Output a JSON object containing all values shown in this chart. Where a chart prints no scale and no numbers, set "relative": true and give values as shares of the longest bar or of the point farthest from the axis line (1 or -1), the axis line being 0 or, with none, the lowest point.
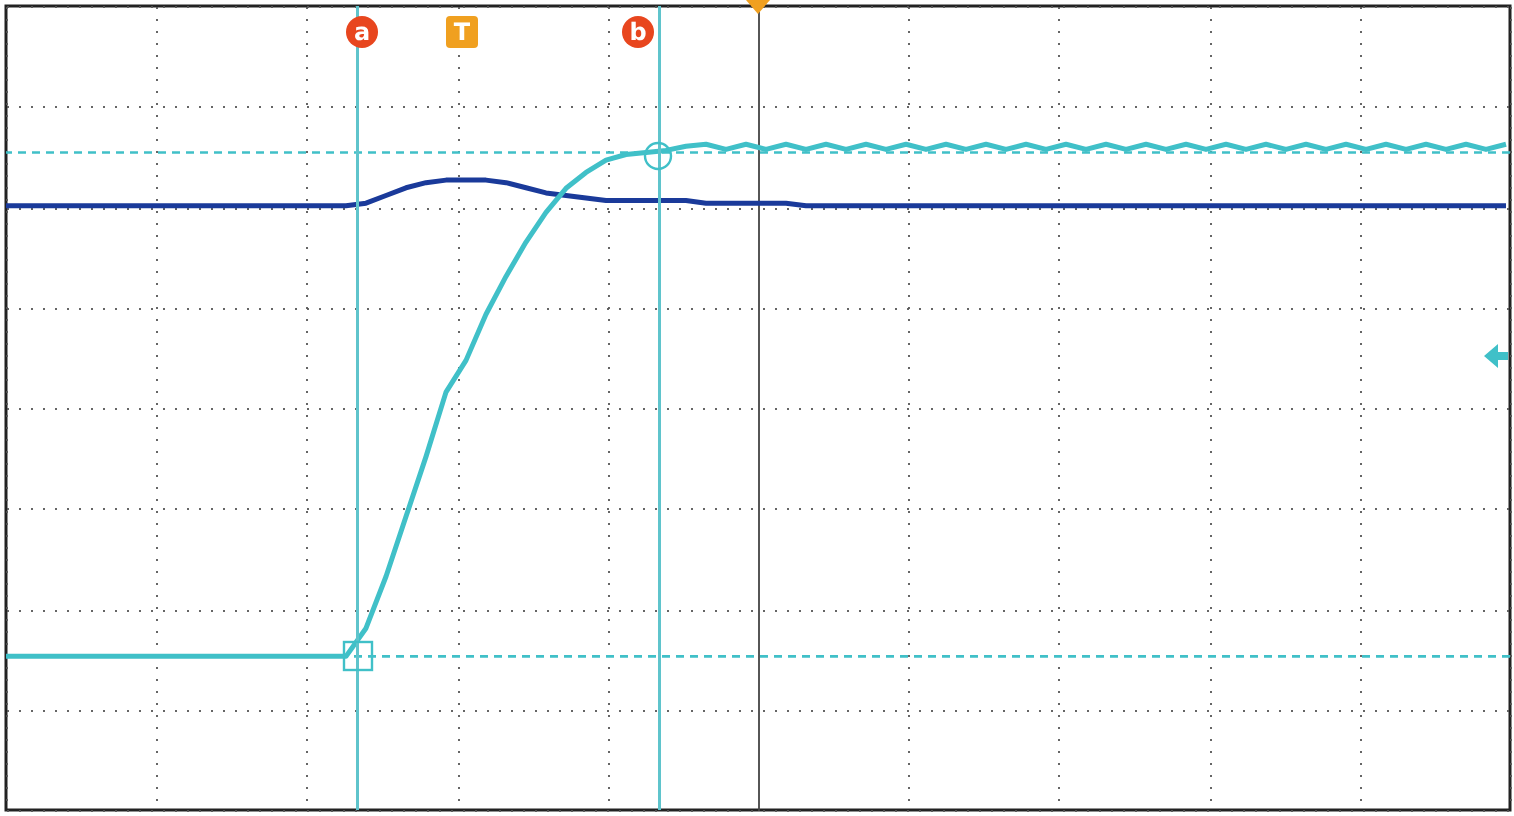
{
  "chart_data": {
    "type": "line",
    "relative": true,
    "grid": true,
    "line_style": "solid",
    "categories": [
      null,
      null,
      null,
      null,
      null,
      null,
      null,
      null,
      null,
      null,
      null,
      null,
      null,
      null,
      null,
      null,
      null,
      null,
      null,
      null,
      null,
      null,
      null,
      null,
      null,
      null,
      null,
      null,
      null,
      null,
      null,
      null,
      null,
      null,
      null,
      null,
      null,
      null,
      null,
      null,
      null,
      null,
      null,
      null,
      null,
      null,
      null,
      null,
      null,
      null,
      null,
      null,
      null,
      null,
      null,
      null,
      null,
      null,
      null,
      null,
      null,
      null,
      null,
      null,
      null,
      null,
      null,
      null,
      null,
      null,
      null,
      null,
      null,
      null,
      null,
      null
    ],
    "series": [
      {
        "color": "#1a3a9a",
        "values": [
          0.88,
          0.88,
          0.88,
          0.88,
          0.88,
          0.88,
          0.88,
          0.88,
          0.88,
          0.88,
          0.88,
          0.88,
          0.88,
          0.88,
          0.88,
          0.88,
          0.88,
          0.88,
          0.885,
          0.9,
          0.915,
          0.925,
          0.93,
          0.93,
          0.93,
          0.925,
          0.915,
          0.905,
          0.9,
          0.895,
          0.89,
          0.89,
          0.89,
          0.89,
          0.89,
          0.885,
          0.885,
          0.885,
          0.885,
          0.885,
          0.88,
          0.88,
          0.88,
          0.88,
          0.88,
          0.88,
          0.88,
          0.88,
          0.88,
          0.88,
          0.88,
          0.88,
          0.88,
          0.88,
          0.88,
          0.88,
          0.88,
          0.88,
          0.88,
          0.88,
          0.88,
          0.88,
          0.88,
          0.88,
          0.88,
          0.88,
          0.88,
          0.88,
          0.88,
          0.88,
          0.88,
          0.88,
          0.88,
          0.88,
          0.88,
          0.88
        ]
      },
      {
        "color": "#40c0c8",
        "values": [
          0,
          0,
          0,
          0,
          0,
          0,
          0,
          0,
          0,
          0,
          0,
          0,
          0,
          0,
          0,
          0,
          0,
          0,
          0.055,
          0.156,
          0.273,
          0.39,
          0.516,
          0.578,
          0.668,
          0.742,
          0.809,
          0.867,
          0.914,
          0.945,
          0.969,
          0.98,
          0.984,
          0.988,
          0.996,
          1,
          0.99,
          1,
          0.99,
          1,
          0.99,
          1,
          0.99,
          1,
          0.99,
          1,
          0.99,
          1,
          0.99,
          1,
          0.99,
          1,
          0.99,
          1,
          0.99,
          1,
          0.99,
          1,
          0.99,
          1,
          0.99,
          1,
          0.99,
          1,
          0.99,
          1,
          0.99,
          1,
          0.99,
          1,
          0.99,
          1,
          0.99,
          1,
          0.99,
          1
        ]
      }
    ],
    "ref_lines": [
      {
        "axis": "y",
        "value": 0,
        "color": "#40c0c8",
        "line_style": "dashed"
      },
      {
        "axis": "y",
        "value": 0.984,
        "color": "#40c0c8",
        "line_style": "dashed"
      }
    ],
    "annotations": [
      "a",
      "T",
      "b"
    ]
  }
}
